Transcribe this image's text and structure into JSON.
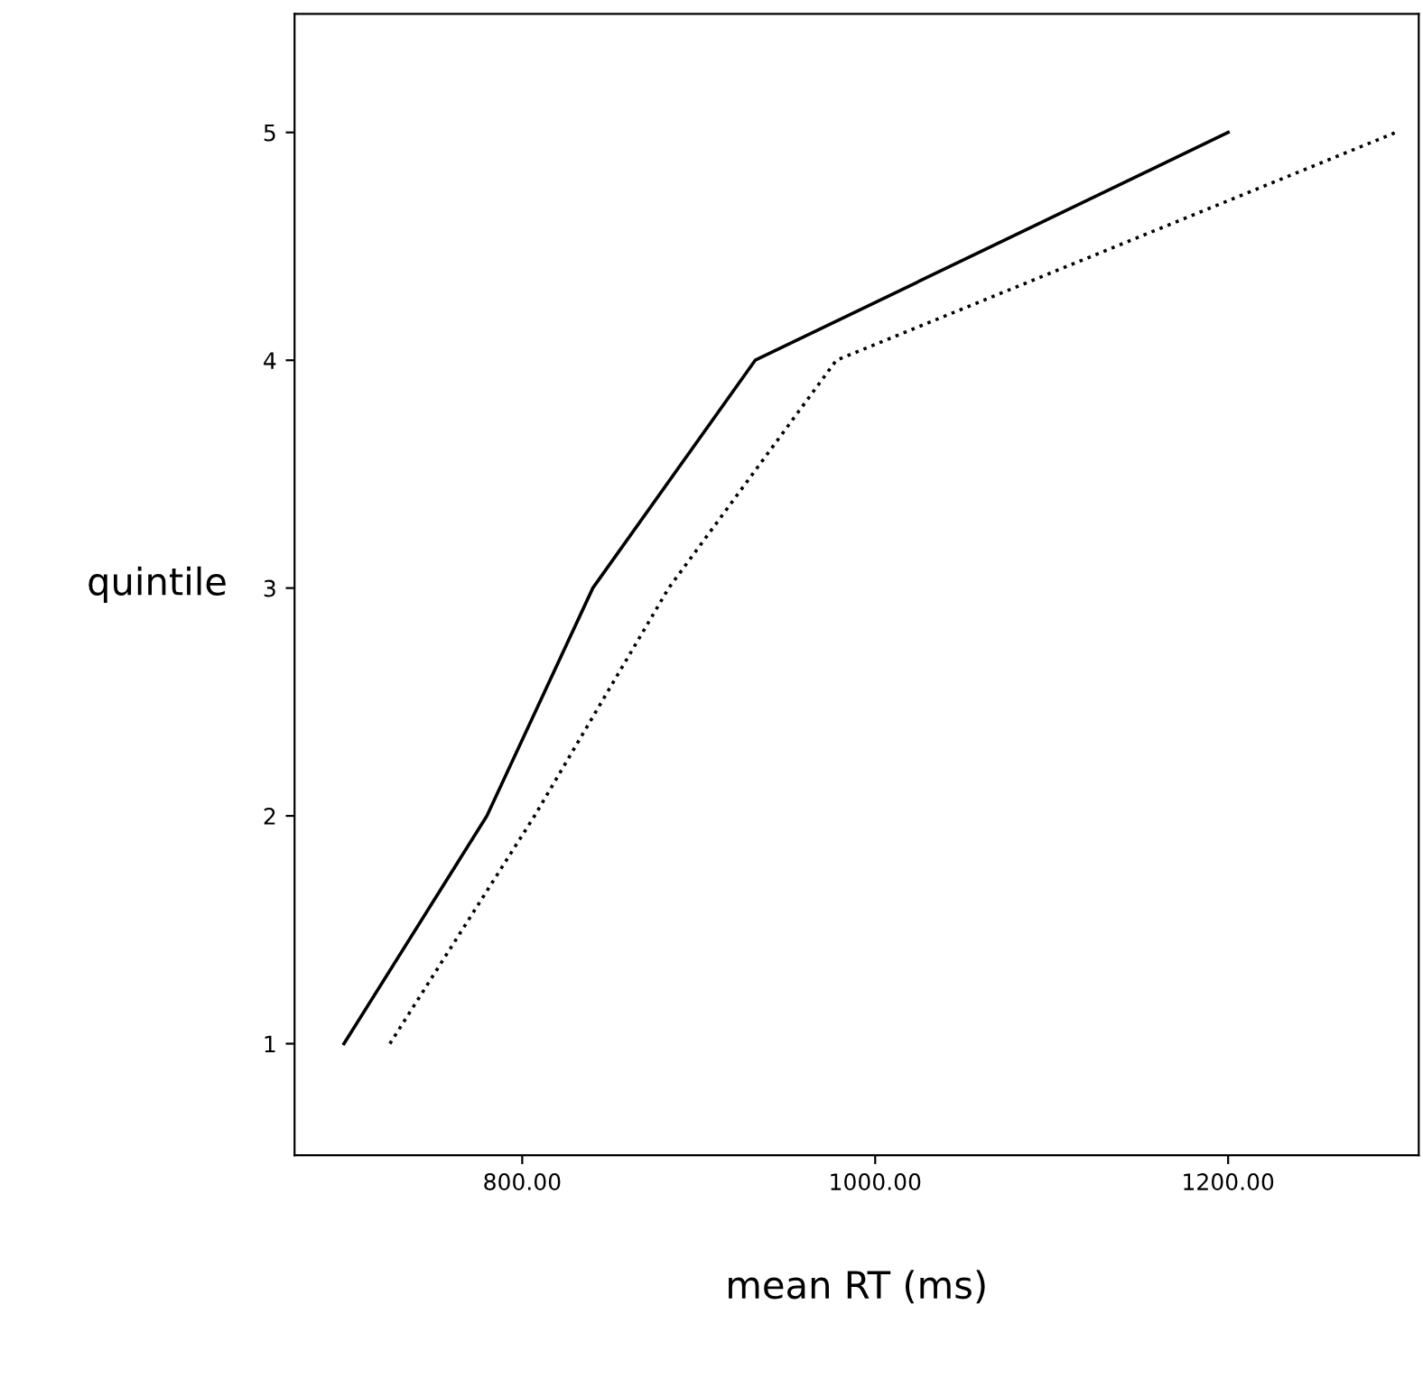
{
  "chart_data": {
    "type": "line",
    "xlabel": "mean RT (ms)",
    "ylabel": "quintile",
    "series": [
      {
        "x": [
          699,
          780,
          840,
          932,
          1200
        ],
        "values": [
          1,
          2,
          3,
          4,
          5
        ],
        "color": "#000000",
        "line_style": "solid"
      },
      {
        "x": [
          725,
          807,
          883,
          978,
          1295
        ],
        "values": [
          1,
          2,
          3,
          4,
          5
        ],
        "color": "#000000",
        "line_style": "dotted"
      }
    ],
    "xlim": [
      671,
      1308
    ],
    "ylim": [
      0.51,
      5.52
    ],
    "xticks": [
      {
        "value": 800,
        "label": "800.00"
      },
      {
        "value": 1000,
        "label": "1000.00"
      },
      {
        "value": 1200,
        "label": "1200.00"
      }
    ],
    "yticks": [
      1,
      2,
      3,
      4,
      5
    ],
    "grid": false,
    "legend": false,
    "marker": "none"
  }
}
